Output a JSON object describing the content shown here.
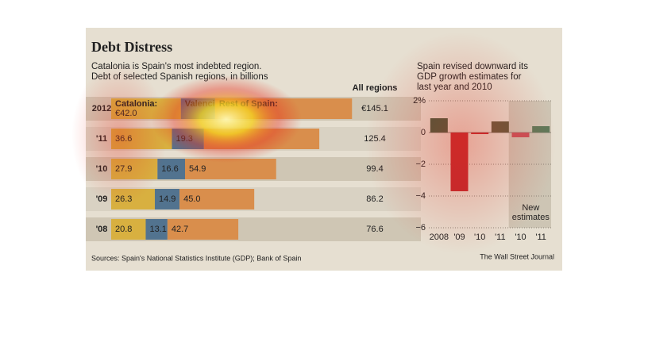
{
  "title": "Debt Distress",
  "source": "Sources: Spain's National Statistics Institute (GDP); Bank of Spain",
  "credit": "The Wall Street Journal",
  "chart_data": [
    {
      "type": "stacked-bar-horizontal",
      "subtitle": [
        "Catalonia is Spain's most indebted region.",
        "Debt of selected Spanish regions, in billions"
      ],
      "categories": [
        "2012",
        "'11",
        "'10",
        "'09",
        "'08"
      ],
      "series": [
        {
          "name": "Catalonia:",
          "color": "#d8b040",
          "values": [
            42.0,
            36.6,
            27.9,
            26.3,
            20.8
          ],
          "value_labels": [
            "€42.0",
            "36.6",
            "27.9",
            "26.3",
            "20.8"
          ]
        },
        {
          "name": "Valencia:",
          "color": "#52738f",
          "values": [
            20.6,
            19.3,
            16.6,
            14.9,
            13.1
          ],
          "value_labels": [
            null,
            "19.3",
            "16.6",
            "14.9",
            "13.1"
          ]
        },
        {
          "name": "Rest of Spain:",
          "color": "#d98e4c",
          "values": [
            82.5,
            69.5,
            54.9,
            45.0,
            42.7
          ],
          "value_labels": [
            null,
            null,
            "54.9",
            "45.0",
            "42.7"
          ]
        }
      ],
      "totals": {
        "name": "All regions",
        "values": [
          145.1,
          125.4,
          99.4,
          86.2,
          76.6
        ],
        "value_labels": [
          "€145.1",
          "125.4",
          "99.4",
          "86.2",
          "76.6"
        ]
      }
    },
    {
      "type": "bar",
      "title": [
        "Spain revised downward its",
        "GDP growth estimates for",
        "last year and 2010"
      ],
      "categories": [
        "2008",
        "'09",
        "'10",
        "'11",
        "'10",
        "'11"
      ],
      "values": [
        0.9,
        -3.7,
        -0.1,
        0.7,
        -0.3,
        0.4
      ],
      "colors": [
        "#3f5a3c",
        "#c0272d",
        "#c0272d",
        "#5e5a3c",
        "#c7525a",
        "#5d7a5a"
      ],
      "ylim": [
        -6,
        2
      ],
      "yticks": [
        {
          "value": 2,
          "label": "2%"
        },
        0,
        {
          "value": -2,
          "label": "−2"
        },
        {
          "value": -4,
          "label": "−4"
        },
        {
          "value": -6,
          "label": "−6"
        }
      ],
      "grid": true,
      "annotation": [
        "New",
        "estimates"
      ]
    }
  ]
}
